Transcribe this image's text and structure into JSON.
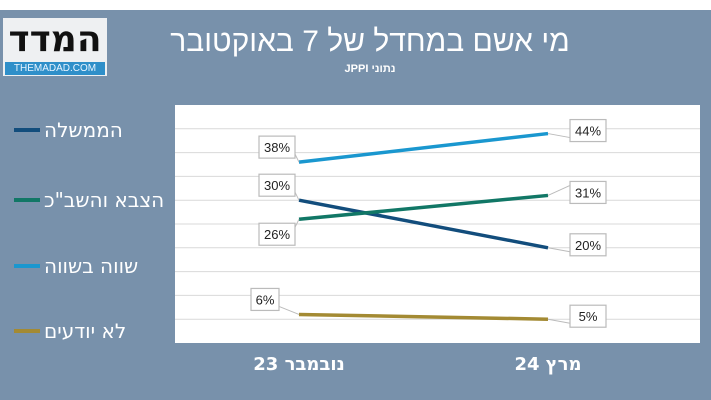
{
  "logo": {
    "hebrew": "המדד",
    "url": "THEMADAD.COM"
  },
  "chart_data": {
    "type": "line",
    "title": "מי אשם במחדל של 7 באוקטובר",
    "subtitle": "נתוני JPPI",
    "categories": [
      "נובמבר 23",
      "מרץ 24"
    ],
    "ylim": [
      0,
      50
    ],
    "grid": true,
    "legend_position": "left",
    "series": [
      {
        "name": "הממשלה",
        "values": [
          30,
          20
        ],
        "labels": [
          "30%",
          "20%"
        ],
        "color": "#124d7c"
      },
      {
        "name": "הצבא והשב\"כ",
        "values": [
          26,
          31
        ],
        "labels": [
          "26%",
          "31%"
        ],
        "color": "#117766"
      },
      {
        "name": "שווה בשווה",
        "values": [
          38,
          44
        ],
        "labels": [
          "38%",
          "44%"
        ],
        "color": "#1a97cf"
      },
      {
        "name": "לא יודעים",
        "values": [
          6,
          5
        ],
        "labels": [
          "6%",
          "5%"
        ],
        "color": "#a38a33"
      }
    ]
  }
}
